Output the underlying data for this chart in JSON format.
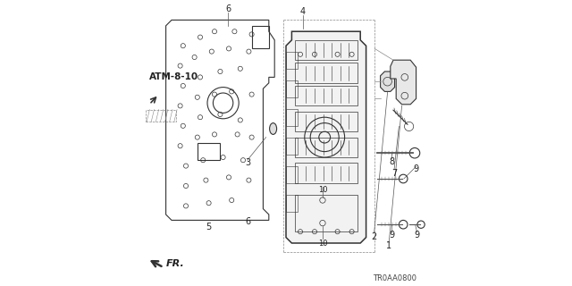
{
  "title": "",
  "background_color": "#ffffff",
  "diagram_code": "TR0AA0800",
  "page_ref": "ATM-8-10",
  "text_color": "#222222",
  "line_color": "#333333"
}
